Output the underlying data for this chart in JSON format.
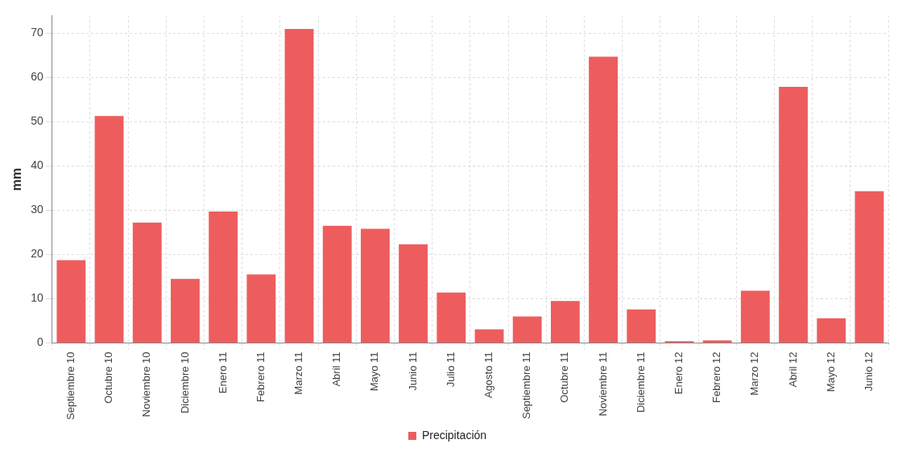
{
  "chart_data": {
    "type": "bar",
    "ylabel": "mm",
    "categories": [
      "Septiembre 10",
      "Octubre 10",
      "Noviembre 10",
      "Diciembre 10",
      "Enero 11",
      "Febrero 11",
      "Marzo 11",
      "Abril 11",
      "Mayo 11",
      "Junio 11",
      "Julio 11",
      "Agosto 11",
      "Septiembre 11",
      "Octubre 11",
      "Noviembre 11",
      "Diciembre 11",
      "Enero 12",
      "Febrero 12",
      "Marzo 12",
      "Abril 12",
      "Mayo 12",
      "Junio 12"
    ],
    "series": [
      {
        "name": "Precipitación",
        "color": "#ee5d5d",
        "values": [
          18.7,
          51.3,
          27.2,
          14.5,
          29.7,
          15.5,
          71.0,
          26.5,
          25.8,
          22.3,
          11.4,
          3.1,
          6.0,
          9.5,
          64.7,
          7.6,
          0.4,
          0.6,
          11.8,
          57.9,
          5.6,
          34.3
        ]
      }
    ],
    "ylim": [
      0,
      74
    ],
    "yticks": [
      0,
      10,
      20,
      30,
      40,
      50,
      60,
      70
    ],
    "grid": true,
    "legend": "bottom"
  }
}
